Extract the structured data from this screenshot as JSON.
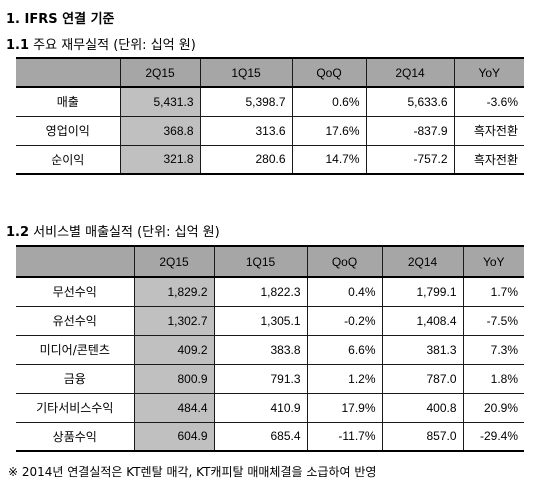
{
  "section1": {
    "title": "1. IFRS 연결 기준",
    "sub_num": "1.1",
    "sub_text": " 주요 재무실적 (단위: 십억 원)",
    "headers": [
      "",
      "2Q15",
      "1Q15",
      "QoQ",
      "2Q14",
      "YoY"
    ],
    "rows": [
      {
        "label": "매출",
        "cells": [
          "5,431.3",
          "5,398.7",
          "0.6%",
          "5,633.6",
          "-3.6%"
        ]
      },
      {
        "label": "영업이익",
        "cells": [
          "368.8",
          "313.6",
          "17.6%",
          "-837.9",
          "흑자전환"
        ]
      },
      {
        "label": "순이익",
        "cells": [
          "321.8",
          "280.6",
          "14.7%",
          "-757.2",
          "흑자전환"
        ]
      }
    ]
  },
  "section2": {
    "sub_num": "1.2",
    "sub_text": " 서비스별 매출실적 (단위: 십억 원)",
    "headers": [
      "",
      "2Q15",
      "1Q15",
      "QoQ",
      "2Q14",
      "YoY"
    ],
    "rows": [
      {
        "label": "무선수익",
        "cells": [
          "1,829.2",
          "1,822.3",
          "0.4%",
          "1,799.1",
          "1.7%"
        ]
      },
      {
        "label": "유선수익",
        "cells": [
          "1,302.7",
          "1,305.1",
          "-0.2%",
          "1,408.4",
          "-7.5%"
        ]
      },
      {
        "label": "미디어/콘텐츠",
        "cells": [
          "409.2",
          "383.8",
          "6.6%",
          "381.3",
          "7.3%"
        ]
      },
      {
        "label": "금융",
        "cells": [
          "800.9",
          "791.3",
          "1.2%",
          "787.0",
          "1.8%"
        ]
      },
      {
        "label": "기타서비스수익",
        "cells": [
          "484.4",
          "410.9",
          "17.9%",
          "400.8",
          "20.9%"
        ]
      },
      {
        "label": "상품수익",
        "cells": [
          "604.9",
          "685.4",
          "-11.7%",
          "857.0",
          "-29.4%"
        ]
      }
    ]
  },
  "footnote": "※ 2014년 연결실적은 KT렌탈 매각, KT캐피탈 매매체결을 소급하여 반영"
}
